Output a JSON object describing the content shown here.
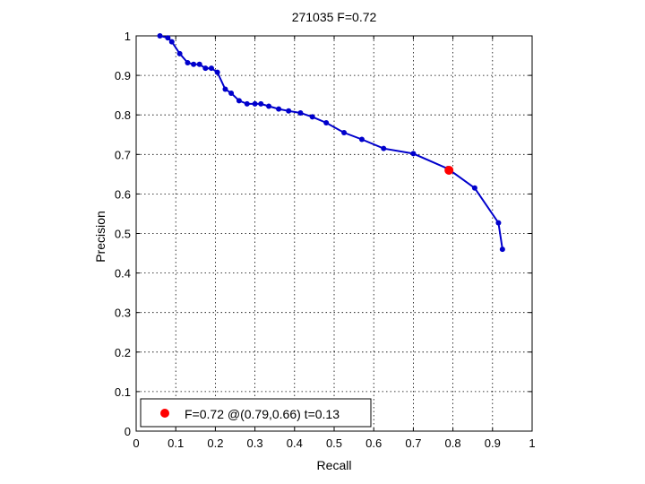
{
  "chart_data": {
    "type": "line",
    "title": "271035 F=0.72",
    "xlabel": "Recall",
    "ylabel": "Precision",
    "xlim": [
      0,
      1
    ],
    "ylim": [
      0,
      1
    ],
    "grid": true,
    "xticks": [
      "0",
      "0.1",
      "0.2",
      "0.3",
      "0.4",
      "0.5",
      "0.6",
      "0.7",
      "0.8",
      "0.9",
      "1"
    ],
    "yticks": [
      "0",
      "0.1",
      "0.2",
      "0.3",
      "0.4",
      "0.5",
      "0.6",
      "0.7",
      "0.8",
      "0.9",
      "1"
    ],
    "series": [
      {
        "color": "#0000cc",
        "marker": "dot",
        "x": [
          0.06,
          0.08,
          0.09,
          0.11,
          0.13,
          0.145,
          0.16,
          0.175,
          0.19,
          0.205,
          0.225,
          0.24,
          0.26,
          0.28,
          0.3,
          0.315,
          0.335,
          0.36,
          0.385,
          0.415,
          0.445,
          0.48,
          0.525,
          0.57,
          0.625,
          0.7,
          0.787,
          0.855,
          0.915,
          0.925
        ],
        "y": [
          1.0,
          0.995,
          0.985,
          0.955,
          0.932,
          0.928,
          0.928,
          0.918,
          0.918,
          0.908,
          0.865,
          0.855,
          0.836,
          0.828,
          0.828,
          0.828,
          0.822,
          0.815,
          0.81,
          0.805,
          0.795,
          0.78,
          0.755,
          0.738,
          0.715,
          0.702,
          0.664,
          0.615,
          0.527,
          0.46
        ]
      }
    ],
    "highlight": {
      "x": 0.79,
      "y": 0.66,
      "color": "#ff0000"
    },
    "legend": {
      "position": "bottom-left",
      "label": "F=0.72 @(0.79,0.66) t=0.13"
    }
  }
}
